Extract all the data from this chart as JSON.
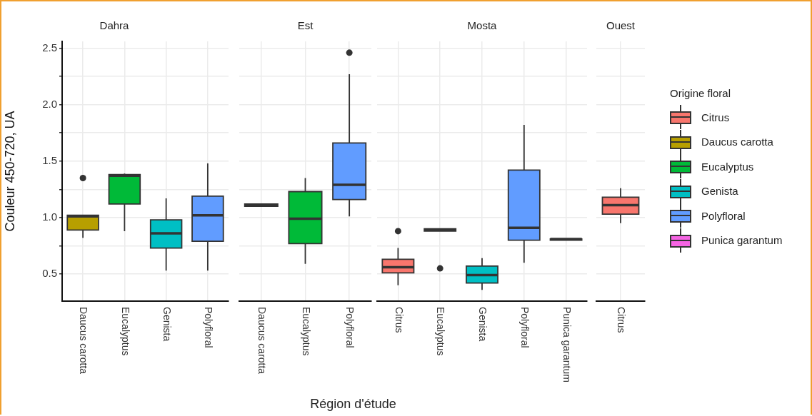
{
  "chart_data": [
    {
      "type": "box",
      "title": "Dahra",
      "ylabel": "Couleur 450-720, UA",
      "categories": [
        "Daucus carotta",
        "Eucalyptus",
        "Genista",
        "Polyfloral"
      ],
      "ylim": [
        0.26,
        2.56
      ],
      "yticks": [
        {
          "value": 0.5,
          "label": "0.5"
        },
        {
          "value": 0.75,
          "label": null
        },
        {
          "value": 1,
          "label": "1.0"
        },
        {
          "value": 1.25,
          "label": null
        },
        {
          "value": 1.5,
          "label": "1.5"
        },
        {
          "value": 1.75,
          "label": null
        },
        {
          "value": 2,
          "label": "2.0"
        },
        {
          "value": 2.25,
          "label": null
        },
        {
          "value": 2.5,
          "label": "2.5"
        }
      ],
      "grid": true,
      "series": [
        {
          "color": "#b79f00",
          "boxes": [
            {
              "low": 0.82,
              "q1": 0.89,
              "median": 1.01,
              "q3": 1.02,
              "high": 1.02,
              "outliers": [
                1.35
              ]
            },
            null,
            null,
            null
          ]
        },
        {
          "color": "#00ba38",
          "boxes": [
            null,
            {
              "low": 0.88,
              "q1": 1.12,
              "median": 1.37,
              "q3": 1.38,
              "high": 1.39
            },
            null,
            null
          ]
        },
        {
          "color": "#00bfc4",
          "boxes": [
            null,
            null,
            {
              "low": 0.53,
              "q1": 0.73,
              "median": 0.86,
              "q3": 0.98,
              "high": 1.17
            },
            null
          ]
        },
        {
          "color": "#619cff",
          "boxes": [
            null,
            null,
            null,
            {
              "low": 0.53,
              "q1": 0.79,
              "median": 1.02,
              "q3": 1.19,
              "high": 1.48
            }
          ]
        }
      ]
    },
    {
      "type": "box",
      "title": "Est",
      "xlabel": "Région d'étude",
      "categories": [
        "Daucus carotta",
        "Eucalyptus",
        "Polyfloral"
      ],
      "ylim": [
        0.26,
        2.56
      ],
      "yticks": [
        0.5,
        0.75,
        1,
        1.25,
        1.5,
        1.75,
        2,
        2.25,
        2.5
      ],
      "grid": true,
      "tick_labels": "x",
      "series": [
        {
          "color": "#b79f00",
          "boxes": [
            {
              "low": 1.1,
              "q1": 1.1,
              "median": 1.11,
              "q3": 1.12,
              "high": 1.12
            },
            null,
            null
          ]
        },
        {
          "color": "#00ba38",
          "boxes": [
            null,
            {
              "low": 0.59,
              "q1": 0.77,
              "median": 0.99,
              "q3": 1.23,
              "high": 1.35
            },
            null
          ]
        },
        {
          "color": "#619cff",
          "boxes": [
            null,
            null,
            {
              "low": 1.01,
              "q1": 1.16,
              "median": 1.29,
              "q3": 1.66,
              "high": 2.27,
              "outliers": [
                2.46
              ]
            }
          ]
        }
      ]
    },
    {
      "type": "box",
      "title": "Mosta",
      "categories": [
        "Citrus",
        "Eucalyptus",
        "Genista",
        "Polyfloral",
        "Punica garantum"
      ],
      "ylim": [
        0.26,
        2.56
      ],
      "yticks": [
        0.5,
        0.75,
        1,
        1.25,
        1.5,
        1.75,
        2,
        2.25,
        2.5
      ],
      "grid": true,
      "tick_labels": "x",
      "series": [
        {
          "color": "#f8766d",
          "boxes": [
            {
              "low": 0.4,
              "q1": 0.51,
              "median": 0.56,
              "q3": 0.63,
              "high": 0.73,
              "outliers": [
                0.88
              ]
            },
            null,
            null,
            null,
            null
          ]
        },
        {
          "color": "#00ba38",
          "boxes": [
            null,
            {
              "low": 0.88,
              "q1": 0.88,
              "median": 0.89,
              "q3": 0.9,
              "high": 0.9,
              "outliers": [
                0.55
              ]
            },
            null,
            null,
            null
          ]
        },
        {
          "color": "#00bfc4",
          "boxes": [
            null,
            null,
            {
              "low": 0.36,
              "q1": 0.42,
              "median": 0.49,
              "q3": 0.57,
              "high": 0.64
            },
            null,
            null
          ]
        },
        {
          "color": "#619cff",
          "boxes": [
            null,
            null,
            null,
            {
              "low": 0.6,
              "q1": 0.8,
              "median": 0.91,
              "q3": 1.42,
              "high": 1.82
            },
            null
          ]
        },
        {
          "color": "#f564e3",
          "boxes": [
            null,
            null,
            null,
            null,
            {
              "low": 0.8,
              "q1": 0.8,
              "median": 0.81,
              "q3": 0.81,
              "high": 0.81
            }
          ]
        }
      ]
    },
    {
      "type": "box",
      "title": "Ouest",
      "categories": [
        "Citrus"
      ],
      "ylim": [
        0.26,
        2.56
      ],
      "yticks": [
        0.5,
        0.75,
        1,
        1.25,
        1.5,
        1.75,
        2,
        2.25,
        2.5
      ],
      "grid": true,
      "legend": "right",
      "legend_title": "Origine floral",
      "tick_labels": "x",
      "series": [
        {
          "name": "Citrus",
          "color": "#f8766d",
          "boxes": [
            {
              "low": 0.95,
              "q1": 1.03,
              "median": 1.11,
              "q3": 1.18,
              "high": 1.26
            }
          ]
        },
        {
          "name": "Daucus carotta",
          "color": "#b79f00",
          "boxes": [
            null
          ]
        },
        {
          "name": "Eucalyptus",
          "color": "#00ba38",
          "boxes": [
            null
          ]
        },
        {
          "name": "Genista",
          "color": "#00bfc4",
          "boxes": [
            null
          ]
        },
        {
          "name": "Polyfloral",
          "color": "#619cff",
          "boxes": [
            null
          ]
        },
        {
          "name": "Punica garantum",
          "color": "#f564e3",
          "boxes": [
            null
          ]
        }
      ]
    }
  ]
}
